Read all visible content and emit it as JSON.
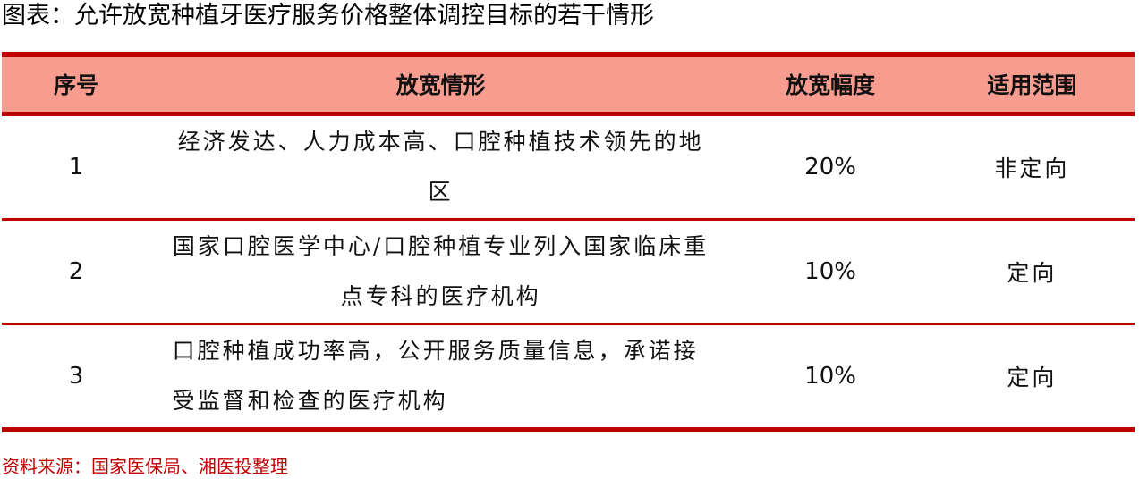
{
  "title": "图表：允许放宽种植牙医疗服务价格整体调控目标的若干情形",
  "table": {
    "headers": [
      "序号",
      "放宽情形",
      "放宽幅度",
      "适用范围"
    ],
    "rows": [
      {
        "no": "1",
        "case": "经济发达、人力成本高、口腔种植技术领先的地区",
        "range": "20%",
        "scope": "非定向"
      },
      {
        "no": "2",
        "case": "国家口腔医学中心/口腔种植专业列入国家临床重点专科的医疗机构",
        "range": "10%",
        "scope": "定向"
      },
      {
        "no": "3",
        "case": "口腔种植成功率高，公开服务质量信息，承诺接受监督和检查的医疗机构",
        "range": "10%",
        "scope": "定向"
      }
    ]
  },
  "source": "资料来源：国家医保局、湘医投整理",
  "colors": {
    "accent": "#c00000",
    "header_bg": "#f79c8e"
  }
}
